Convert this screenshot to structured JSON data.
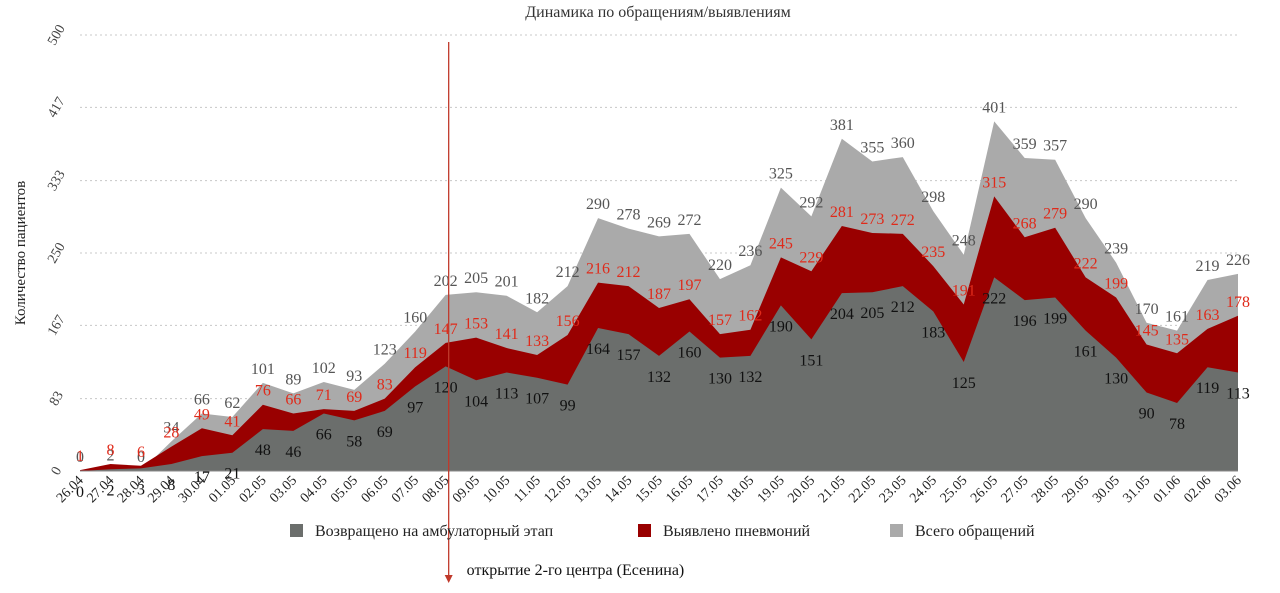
{
  "chart_data": {
    "type": "area",
    "title": "Динамика по обращениям/выявлениям",
    "ylabel": "Количество пациентов",
    "xlabel": "",
    "ylim": [
      0,
      500
    ],
    "yticks": [
      0,
      83,
      167,
      250,
      333,
      417,
      500
    ],
    "grid": true,
    "legend_position": "bottom",
    "categories": [
      "26.04",
      "27.04",
      "28.04",
      "29.04",
      "30.04",
      "01.05",
      "02.05",
      "03.05",
      "04.05",
      "05.05",
      "06.05",
      "07.05",
      "08.05",
      "09.05",
      "10.05",
      "11.05",
      "12.05",
      "13.05",
      "14.05",
      "15.05",
      "16.05",
      "17.05",
      "18.05",
      "19.05",
      "20.05",
      "21.05",
      "22.05",
      "23.05",
      "24.05",
      "25.05",
      "26.05",
      "27.05",
      "28.05",
      "29.05",
      "30.05",
      "31.05",
      "01.06",
      "02.06",
      "03.06"
    ],
    "series": [
      {
        "name": "Всего обращений",
        "color": "#aaaaaa",
        "label_color": "#555555",
        "values": [
          0,
          2,
          0,
          34,
          66,
          62,
          101,
          89,
          102,
          93,
          123,
          160,
          202,
          205,
          201,
          182,
          212,
          290,
          278,
          269,
          272,
          220,
          236,
          325,
          292,
          381,
          355,
          360,
          298,
          248,
          401,
          359,
          357,
          290,
          239,
          170,
          161,
          219,
          226
        ]
      },
      {
        "name": "Выявлено пневмоний",
        "color": "#990000",
        "label_color": "#e02a1a",
        "values": [
          1,
          8,
          6,
          28,
          49,
          41,
          76,
          66,
          71,
          69,
          83,
          119,
          147,
          153,
          141,
          133,
          156,
          216,
          212,
          187,
          197,
          157,
          162,
          245,
          229,
          281,
          273,
          272,
          235,
          191,
          315,
          268,
          279,
          222,
          199,
          145,
          135,
          163,
          178
        ]
      },
      {
        "name": "Возвращено на амбулаторный этап",
        "color": "#6b6e6c",
        "label_color": "#111111",
        "values": [
          0,
          2,
          3,
          8,
          17,
          21,
          48,
          46,
          66,
          58,
          69,
          97,
          120,
          104,
          113,
          107,
          99,
          164,
          157,
          132,
          160,
          130,
          132,
          190,
          151,
          204,
          205,
          212,
          183,
          125,
          222,
          196,
          199,
          161,
          130,
          90,
          78,
          119,
          113
        ]
      }
    ],
    "legend": [
      "Возвращено на амбулаторный этап",
      "Выявлено пневмоний",
      "Всего обращений"
    ],
    "annotation": {
      "text": "открытие 2-го центра (Есенина)",
      "x": "08.05",
      "color": "#c0392b"
    }
  }
}
